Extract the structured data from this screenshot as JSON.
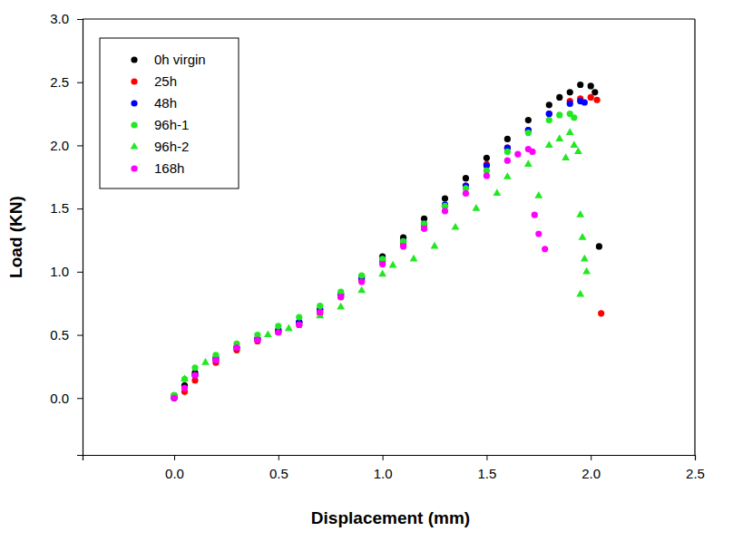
{
  "chart_data": {
    "type": "scatter",
    "x_label": "Displacement (mm)",
    "y_label": "Load (KN)",
    "xlim": [
      -0.44,
      2.5
    ],
    "ylim": [
      -0.45,
      3.0
    ],
    "xticks": [
      {
        "value": 0,
        "label": "0.0"
      },
      0.5,
      {
        "value": 1,
        "label": "1.0"
      },
      1.5,
      {
        "value": 2,
        "label": "2.0"
      },
      2.5
    ],
    "yticks": [
      {
        "value": 0,
        "label": "0.0"
      },
      0.5,
      {
        "value": 1,
        "label": "1.0"
      },
      1.5,
      {
        "value": 2,
        "label": "2.0"
      },
      2.5,
      {
        "value": 3,
        "label": "3.0"
      }
    ],
    "grid": false,
    "legend": "top-left",
    "series": [
      {
        "name": "0h virgin",
        "color": "#000000",
        "marker": "circle",
        "x": [
          0,
          0.05,
          0.1,
          0.2,
          0.3,
          0.4,
          0.5,
          0.6,
          0.7,
          0.8,
          0.9,
          1.0,
          1.1,
          1.2,
          1.3,
          1.4,
          1.5,
          1.6,
          1.7,
          1.8,
          1.85,
          1.9,
          1.95,
          2.0,
          2.02,
          2.04
        ],
        "values": [
          0.02,
          0.1,
          0.2,
          0.32,
          0.4,
          0.47,
          0.53,
          0.6,
          0.7,
          0.82,
          0.96,
          1.12,
          1.27,
          1.42,
          1.58,
          1.74,
          1.9,
          2.05,
          2.2,
          2.32,
          2.38,
          2.42,
          2.48,
          2.47,
          2.42,
          1.2
        ]
      },
      {
        "name": "25h",
        "color": "#ff0000",
        "marker": "circle",
        "x": [
          0,
          0.05,
          0.1,
          0.2,
          0.3,
          0.4,
          0.5,
          0.6,
          0.7,
          0.8,
          0.9,
          1.0,
          1.1,
          1.2,
          1.3,
          1.4,
          1.5,
          1.6,
          1.7,
          1.8,
          1.9,
          1.95,
          2.0,
          2.03,
          2.05
        ],
        "values": [
          0.0,
          0.05,
          0.14,
          0.28,
          0.38,
          0.45,
          0.52,
          0.58,
          0.67,
          0.8,
          0.93,
          1.08,
          1.22,
          1.37,
          1.52,
          1.68,
          1.85,
          1.98,
          2.12,
          2.25,
          2.35,
          2.37,
          2.38,
          2.36,
          0.67
        ]
      },
      {
        "name": "48h",
        "color": "#0000ff",
        "marker": "circle",
        "x": [
          0,
          0.1,
          0.2,
          0.3,
          0.4,
          0.5,
          0.6,
          0.7,
          0.8,
          0.9,
          1.0,
          1.1,
          1.2,
          1.3,
          1.4,
          1.5,
          1.6,
          1.7,
          1.8,
          1.9,
          1.95,
          1.97
        ],
        "values": [
          0.0,
          0.18,
          0.3,
          0.4,
          0.47,
          0.54,
          0.6,
          0.7,
          0.82,
          0.95,
          1.1,
          1.24,
          1.38,
          1.53,
          1.68,
          1.84,
          1.98,
          2.12,
          2.25,
          2.33,
          2.35,
          2.34
        ]
      },
      {
        "name": "96h-1",
        "color": "#22e822",
        "marker": "circle",
        "x": [
          0,
          0.05,
          0.1,
          0.2,
          0.3,
          0.4,
          0.5,
          0.6,
          0.7,
          0.8,
          0.9,
          1.0,
          1.1,
          1.2,
          1.3,
          1.4,
          1.5,
          1.6,
          1.7,
          1.8,
          1.85,
          1.9,
          1.92
        ],
        "values": [
          0.02,
          0.15,
          0.24,
          0.34,
          0.43,
          0.5,
          0.57,
          0.64,
          0.73,
          0.84,
          0.97,
          1.1,
          1.24,
          1.38,
          1.52,
          1.66,
          1.8,
          1.95,
          2.1,
          2.2,
          2.24,
          2.25,
          2.22
        ]
      },
      {
        "name": "96h-2",
        "color": "#22e822",
        "marker": "triangle",
        "x": [
          0.05,
          0.15,
          0.3,
          0.45,
          0.55,
          0.7,
          0.8,
          0.9,
          1.0,
          1.05,
          1.15,
          1.25,
          1.35,
          1.45,
          1.55,
          1.6,
          1.7,
          1.75,
          1.8,
          1.85,
          1.88,
          1.9,
          1.92,
          1.94,
          1.95,
          1.96,
          1.97,
          1.98,
          1.95
        ],
        "values": [
          0.15,
          0.28,
          0.4,
          0.5,
          0.55,
          0.65,
          0.72,
          0.85,
          0.98,
          1.05,
          1.1,
          1.2,
          1.35,
          1.5,
          1.62,
          1.75,
          1.85,
          1.6,
          2.0,
          2.05,
          1.9,
          2.1,
          2.0,
          1.95,
          1.45,
          1.27,
          1.1,
          1.0,
          0.82
        ]
      },
      {
        "name": "168h",
        "color": "#ff00ff",
        "marker": "circle",
        "x": [
          0,
          0.05,
          0.1,
          0.2,
          0.3,
          0.4,
          0.5,
          0.6,
          0.7,
          0.8,
          0.9,
          1.0,
          1.1,
          1.2,
          1.3,
          1.4,
          1.5,
          1.6,
          1.65,
          1.7,
          1.72,
          1.73,
          1.75,
          1.78
        ],
        "values": [
          0.0,
          0.08,
          0.18,
          0.3,
          0.4,
          0.46,
          0.52,
          0.58,
          0.68,
          0.8,
          0.92,
          1.06,
          1.2,
          1.34,
          1.48,
          1.62,
          1.76,
          1.88,
          1.93,
          1.97,
          1.95,
          1.45,
          1.3,
          1.18
        ]
      }
    ]
  }
}
